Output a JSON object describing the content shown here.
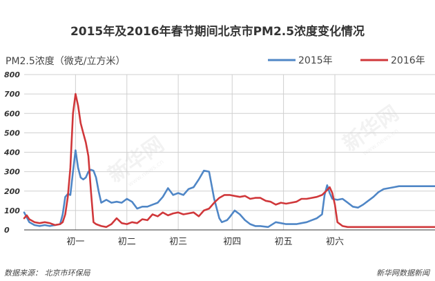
{
  "chart_data": {
    "type": "line",
    "title": "2015年及2016年春节期间北京市PM2.5浓度变化情况",
    "ylabel": "PM2.5浓度（微克/立方米）",
    "ylim": [
      0,
      800
    ],
    "yticks": [
      0,
      100,
      200,
      300,
      400,
      500,
      600,
      700,
      800
    ],
    "xlim": [
      0,
      160
    ],
    "categories": [
      "初一",
      "初二",
      "初三",
      "初四",
      "初五",
      "初六"
    ],
    "category_positions": [
      20,
      40,
      60,
      81,
      101,
      121
    ],
    "grid": true,
    "legend_position": "top-right",
    "series": [
      {
        "name": "2015年",
        "color": "#4f86c6",
        "x": [
          0,
          2,
          4,
          6,
          8,
          10,
          12,
          14,
          15,
          16,
          17,
          18,
          19,
          20,
          21,
          22,
          23,
          24,
          25,
          26,
          27,
          28,
          29,
          30,
          32,
          34,
          36,
          38,
          40,
          42,
          44,
          46,
          48,
          50,
          52,
          54,
          56,
          58,
          60,
          62,
          64,
          66,
          68,
          70,
          72,
          74,
          76,
          77,
          78,
          79,
          80,
          82,
          84,
          86,
          88,
          90,
          92,
          95,
          98,
          100,
          102,
          104,
          106,
          108,
          110,
          112,
          114,
          116,
          117,
          118,
          119,
          120,
          122,
          124,
          126,
          128,
          130,
          132,
          134,
          136,
          138,
          140,
          142,
          144,
          146,
          148,
          150,
          152,
          154,
          156,
          158,
          160
        ],
        "values": [
          90,
          40,
          25,
          20,
          25,
          20,
          25,
          30,
          80,
          170,
          185,
          180,
          300,
          410,
          320,
          270,
          260,
          270,
          300,
          310,
          305,
          270,
          200,
          140,
          155,
          140,
          145,
          140,
          160,
          145,
          110,
          120,
          120,
          130,
          140,
          170,
          215,
          180,
          190,
          180,
          210,
          220,
          260,
          305,
          300,
          160,
          60,
          40,
          45,
          50,
          65,
          100,
          80,
          50,
          30,
          20,
          20,
          15,
          40,
          35,
          30,
          30,
          30,
          35,
          40,
          50,
          60,
          80,
          180,
          230,
          190,
          160,
          155,
          160,
          140,
          120,
          115,
          130,
          150,
          170,
          195,
          210,
          215,
          220,
          225,
          225,
          225,
          225,
          225,
          225,
          225,
          225
        ]
      },
      {
        "name": "2016年",
        "color": "#d0373a",
        "x": [
          0,
          1,
          2,
          4,
          6,
          8,
          10,
          12,
          14,
          15,
          16,
          17,
          18,
          19,
          20,
          21,
          22,
          23,
          24,
          25,
          26,
          27,
          28,
          29,
          30,
          32,
          34,
          36,
          38,
          40,
          42,
          44,
          46,
          48,
          50,
          52,
          54,
          56,
          58,
          60,
          62,
          64,
          66,
          68,
          70,
          72,
          74,
          76,
          78,
          80,
          82,
          84,
          86,
          88,
          90,
          92,
          94,
          96,
          98,
          100,
          102,
          104,
          106,
          108,
          110,
          112,
          114,
          116,
          118,
          119,
          120,
          121,
          122,
          124,
          126,
          128,
          130,
          132,
          134,
          136,
          138,
          140,
          142,
          144,
          146,
          148,
          150,
          152,
          154,
          156,
          158,
          160
        ],
        "values": [
          60,
          75,
          55,
          40,
          35,
          40,
          35,
          25,
          30,
          40,
          80,
          170,
          320,
          600,
          700,
          640,
          550,
          500,
          450,
          380,
          200,
          40,
          30,
          25,
          20,
          15,
          30,
          60,
          35,
          30,
          40,
          35,
          55,
          50,
          80,
          70,
          90,
          75,
          85,
          90,
          80,
          85,
          90,
          70,
          100,
          110,
          140,
          165,
          180,
          180,
          175,
          170,
          175,
          160,
          165,
          165,
          150,
          145,
          130,
          140,
          135,
          140,
          145,
          160,
          160,
          165,
          170,
          180,
          205,
          220,
          190,
          130,
          40,
          20,
          15,
          15,
          15,
          15,
          15,
          15,
          15,
          15,
          15,
          15,
          15,
          15,
          15,
          15,
          15,
          15,
          15,
          15
        ]
      }
    ]
  },
  "footer": {
    "source": "数据来源：  北京市环保局",
    "brand": "新华网数据新闻"
  },
  "watermark": {
    "text": "新华网",
    "url": "www.news.cn"
  }
}
